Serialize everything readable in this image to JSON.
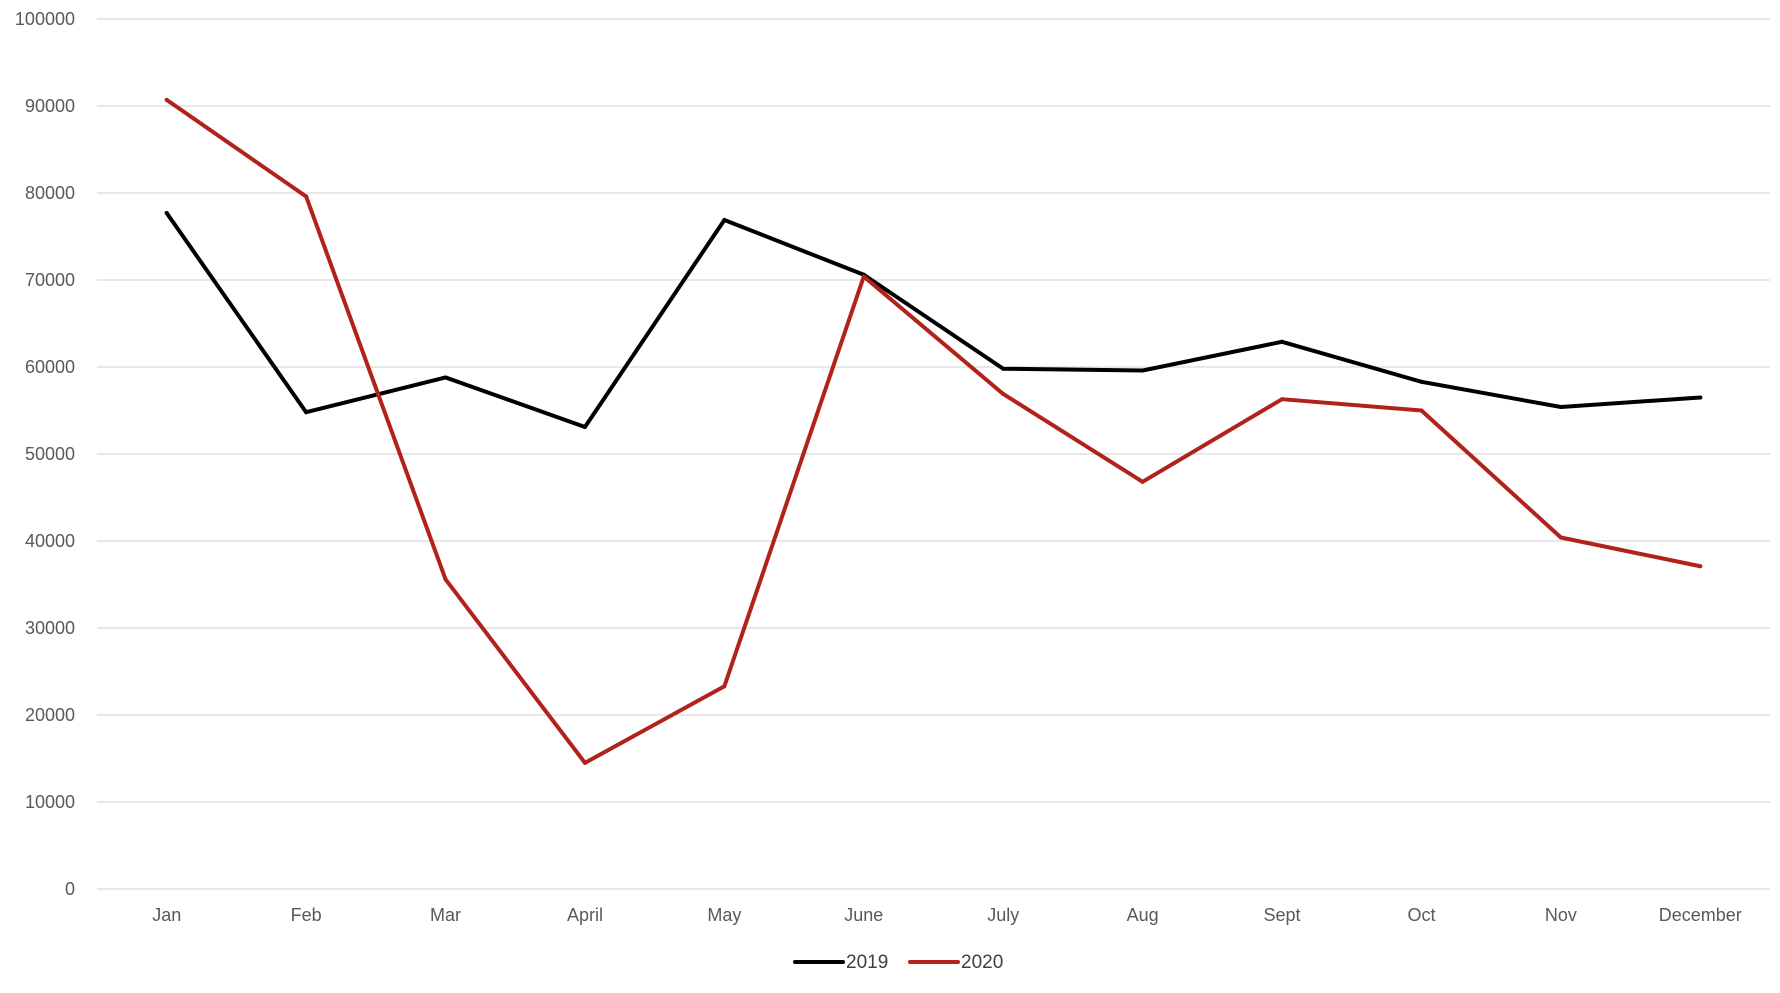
{
  "chart_data": {
    "type": "line",
    "title": "",
    "xlabel": "",
    "ylabel": "",
    "categories": [
      "Jan",
      "Feb",
      "Mar",
      "April",
      "May",
      "June",
      "July",
      "Aug",
      "Sept",
      "Oct",
      "Nov",
      "December"
    ],
    "ylim": [
      0,
      100000
    ],
    "yticks": [
      "0",
      "10000",
      "20000",
      "30000",
      "40000",
      "50000",
      "60000",
      "70000",
      "80000",
      "90000",
      "100000"
    ],
    "grid": true,
    "legend_position": "bottom",
    "series": [
      {
        "name": "2019",
        "color": "#000000",
        "values": [
          77700,
          54800,
          58800,
          53100,
          76900,
          70600,
          59800,
          59600,
          62900,
          58300,
          55400,
          56500
        ]
      },
      {
        "name": "2020",
        "color": "#b0221a",
        "values": [
          90700,
          79600,
          35600,
          14500,
          23300,
          70400,
          56900,
          46800,
          56300,
          55000,
          40400,
          37100
        ]
      }
    ]
  }
}
